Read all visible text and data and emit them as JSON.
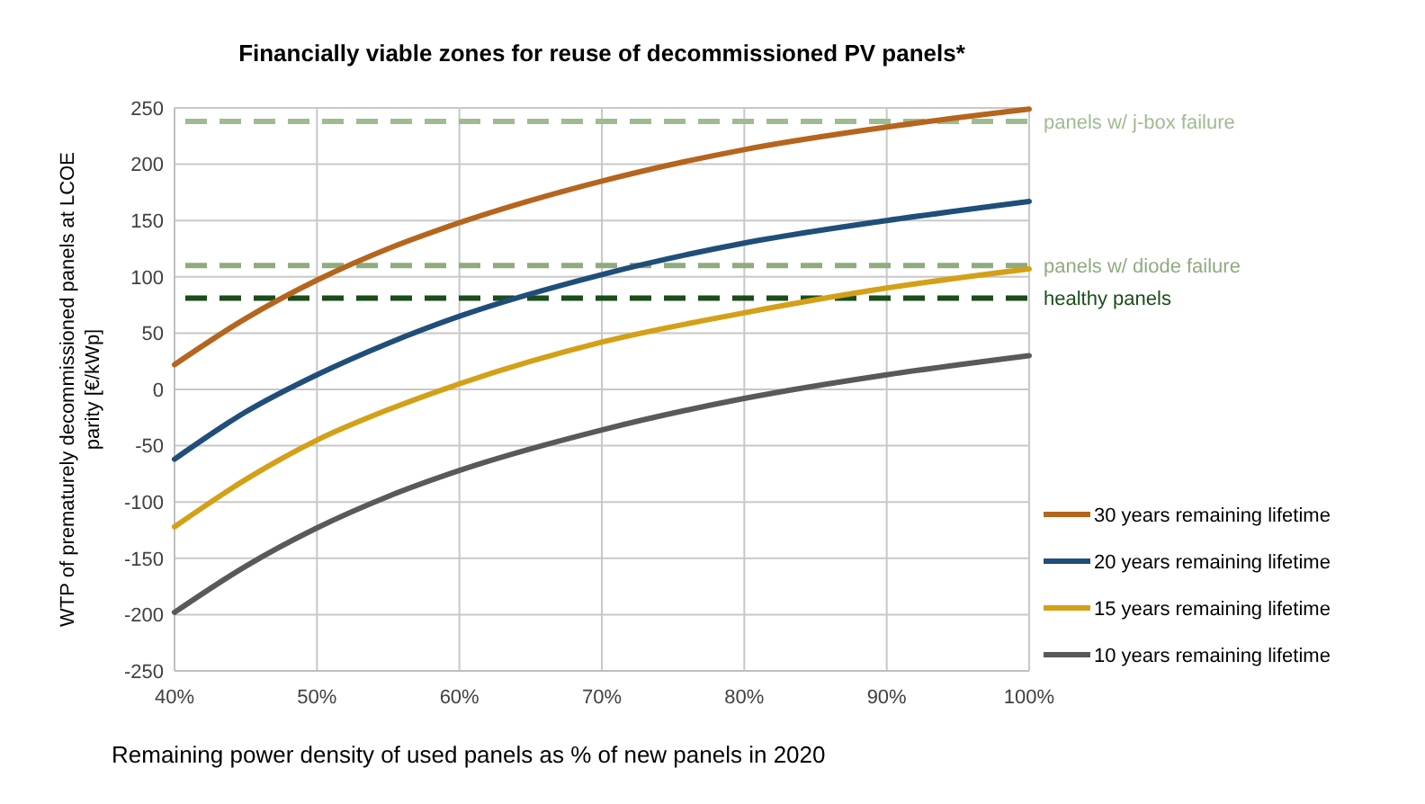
{
  "chart_data": {
    "type": "line",
    "title": "Financially viable zones for reuse of decommissioned PV panels*",
    "xlabel": "Remaining power density of used panels as % of new panels in 2020",
    "ylabel": "WTP of prematurely decommissioned panels at LCOE parity [€/kWp]",
    "x": [
      40,
      45,
      50,
      55,
      60,
      70,
      80,
      90,
      100
    ],
    "series": [
      {
        "name": "30 years remaining lifetime",
        "color": "#b5651d",
        "values": [
          22,
          63,
          97,
          125,
          148,
          185,
          213,
          233,
          249
        ]
      },
      {
        "name": "20 years remaining lifetime",
        "color": "#1f4e79",
        "values": [
          -62,
          -20,
          13,
          41,
          65,
          102,
          130,
          150,
          167
        ]
      },
      {
        "name": "15 years remaining lifetime",
        "color": "#d4a017",
        "values": [
          -122,
          -80,
          -45,
          -18,
          5,
          42,
          68,
          90,
          107
        ]
      },
      {
        "name": "10 years remaining lifetime",
        "color": "#595959",
        "values": [
          -198,
          -157,
          -123,
          -95,
          -72,
          -36,
          -8,
          13,
          30
        ]
      }
    ],
    "xlim": [
      40,
      100
    ],
    "xticks": [
      {
        "value": 40,
        "label": "40%"
      },
      {
        "value": 50,
        "label": "50%"
      },
      {
        "value": 60,
        "label": "60%"
      },
      {
        "value": 70,
        "label": "70%"
      },
      {
        "value": 80,
        "label": "80%"
      },
      {
        "value": 90,
        "label": "90%"
      },
      {
        "value": 100,
        "label": "100%"
      }
    ],
    "ylim": [
      -250,
      250
    ],
    "yticks": [
      -250,
      -200,
      -150,
      -100,
      -50,
      0,
      50,
      100,
      150,
      200,
      250
    ],
    "ref_lines": [
      {
        "axis": "y",
        "value": 238,
        "label": "panels w/ j-box failure",
        "color": "#9fbb91",
        "line_style": "dashed"
      },
      {
        "axis": "y",
        "value": 110,
        "label": "panels w/ diode failure",
        "color": "#8fab7f",
        "line_style": "dashed"
      },
      {
        "axis": "y",
        "value": 81,
        "label": "healthy panels",
        "color": "#1a4d1a",
        "line_style": "dashed"
      }
    ],
    "grid": true,
    "legend": "right",
    "marker": "none",
    "line_style": "solid"
  }
}
